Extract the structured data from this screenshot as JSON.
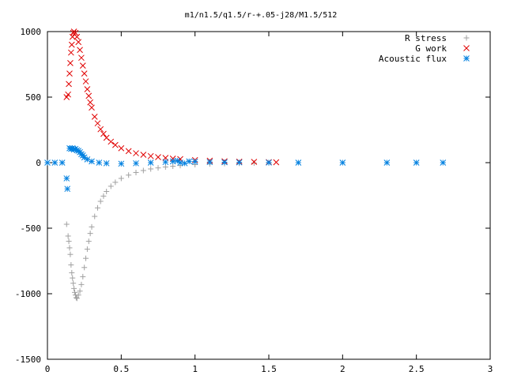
{
  "chart_data": {
    "type": "scatter",
    "title": "m1/n1.5/q1.5/r-+.05-j28/M1.5/512",
    "xlabel": "",
    "ylabel": "",
    "xlim": [
      0,
      3
    ],
    "ylim": [
      -1500,
      1000
    ],
    "xticks": [
      "0",
      "0.5",
      "1",
      "1.5",
      "2",
      "2.5",
      "3"
    ],
    "yticks": [
      "1000",
      "500",
      "0",
      "-500",
      "-1000",
      "-1500"
    ],
    "grid": false,
    "legend_position": "top-right",
    "series": [
      {
        "name": "R stress",
        "marker": "+",
        "color": "#a0a0a0",
        "points": [
          [
            0.13,
            -470
          ],
          [
            0.14,
            -560
          ],
          [
            0.145,
            -600
          ],
          [
            0.15,
            -650
          ],
          [
            0.155,
            -700
          ],
          [
            0.16,
            -780
          ],
          [
            0.165,
            -840
          ],
          [
            0.17,
            -880
          ],
          [
            0.175,
            -920
          ],
          [
            0.18,
            -960
          ],
          [
            0.185,
            -990
          ],
          [
            0.19,
            -1010
          ],
          [
            0.195,
            -1030
          ],
          [
            0.2,
            -1035
          ],
          [
            0.21,
            -1010
          ],
          [
            0.22,
            -980
          ],
          [
            0.23,
            -930
          ],
          [
            0.24,
            -870
          ],
          [
            0.25,
            -800
          ],
          [
            0.26,
            -730
          ],
          [
            0.27,
            -660
          ],
          [
            0.28,
            -600
          ],
          [
            0.29,
            -540
          ],
          [
            0.3,
            -490
          ],
          [
            0.32,
            -410
          ],
          [
            0.34,
            -345
          ],
          [
            0.36,
            -295
          ],
          [
            0.38,
            -255
          ],
          [
            0.4,
            -220
          ],
          [
            0.43,
            -180
          ],
          [
            0.46,
            -150
          ],
          [
            0.5,
            -120
          ],
          [
            0.55,
            -95
          ],
          [
            0.6,
            -75
          ],
          [
            0.65,
            -60
          ],
          [
            0.7,
            -48
          ],
          [
            0.75,
            -40
          ],
          [
            0.8,
            -33
          ],
          [
            0.85,
            -27
          ],
          [
            0.9,
            -22
          ],
          [
            1.0,
            -15
          ],
          [
            1.1,
            -10
          ],
          [
            1.2,
            -7
          ],
          [
            1.3,
            -5
          ],
          [
            1.4,
            -3
          ],
          [
            1.5,
            -2
          ]
        ]
      },
      {
        "name": "G work",
        "marker": "x",
        "color": "#e00000",
        "points": [
          [
            0.13,
            500
          ],
          [
            0.14,
            520
          ],
          [
            0.145,
            600
          ],
          [
            0.15,
            680
          ],
          [
            0.155,
            760
          ],
          [
            0.16,
            840
          ],
          [
            0.165,
            900
          ],
          [
            0.17,
            960
          ],
          [
            0.175,
            990
          ],
          [
            0.18,
            1000
          ],
          [
            0.19,
            990
          ],
          [
            0.2,
            960
          ],
          [
            0.21,
            920
          ],
          [
            0.22,
            860
          ],
          [
            0.23,
            800
          ],
          [
            0.24,
            740
          ],
          [
            0.25,
            680
          ],
          [
            0.26,
            620
          ],
          [
            0.27,
            560
          ],
          [
            0.28,
            510
          ],
          [
            0.29,
            460
          ],
          [
            0.3,
            420
          ],
          [
            0.32,
            350
          ],
          [
            0.34,
            300
          ],
          [
            0.36,
            255
          ],
          [
            0.38,
            220
          ],
          [
            0.4,
            190
          ],
          [
            0.43,
            160
          ],
          [
            0.46,
            135
          ],
          [
            0.5,
            110
          ],
          [
            0.55,
            88
          ],
          [
            0.6,
            72
          ],
          [
            0.65,
            60
          ],
          [
            0.7,
            50
          ],
          [
            0.75,
            42
          ],
          [
            0.8,
            36
          ],
          [
            0.85,
            31
          ],
          [
            0.9,
            27
          ],
          [
            1.0,
            20
          ],
          [
            1.1,
            15
          ],
          [
            1.2,
            11
          ],
          [
            1.3,
            8
          ],
          [
            1.4,
            6
          ],
          [
            1.5,
            4
          ],
          [
            1.55,
            3
          ]
        ]
      },
      {
        "name": "Acoustic flux",
        "marker": "*",
        "color": "#0080e0",
        "points": [
          [
            0.0,
            0
          ],
          [
            0.05,
            0
          ],
          [
            0.1,
            0
          ],
          [
            0.13,
            -120
          ],
          [
            0.135,
            -200
          ],
          [
            0.15,
            110
          ],
          [
            0.16,
            105
          ],
          [
            0.17,
            110
          ],
          [
            0.18,
            100
          ],
          [
            0.19,
            105
          ],
          [
            0.2,
            95
          ],
          [
            0.21,
            90
          ],
          [
            0.22,
            80
          ],
          [
            0.23,
            65
          ],
          [
            0.24,
            55
          ],
          [
            0.25,
            40
          ],
          [
            0.27,
            25
          ],
          [
            0.3,
            10
          ],
          [
            0.35,
            0
          ],
          [
            0.4,
            -5
          ],
          [
            0.5,
            -8
          ],
          [
            0.6,
            -5
          ],
          [
            0.7,
            0
          ],
          [
            0.8,
            5
          ],
          [
            0.85,
            10
          ],
          [
            0.88,
            15
          ],
          [
            0.9,
            0
          ],
          [
            0.93,
            -5
          ],
          [
            0.96,
            10
          ],
          [
            1.0,
            8
          ],
          [
            1.1,
            5
          ],
          [
            1.2,
            3
          ],
          [
            1.3,
            2
          ],
          [
            1.5,
            1
          ],
          [
            1.7,
            0
          ],
          [
            2.0,
            0
          ],
          [
            2.3,
            0
          ],
          [
            2.5,
            0
          ],
          [
            2.68,
            0
          ]
        ]
      }
    ]
  }
}
